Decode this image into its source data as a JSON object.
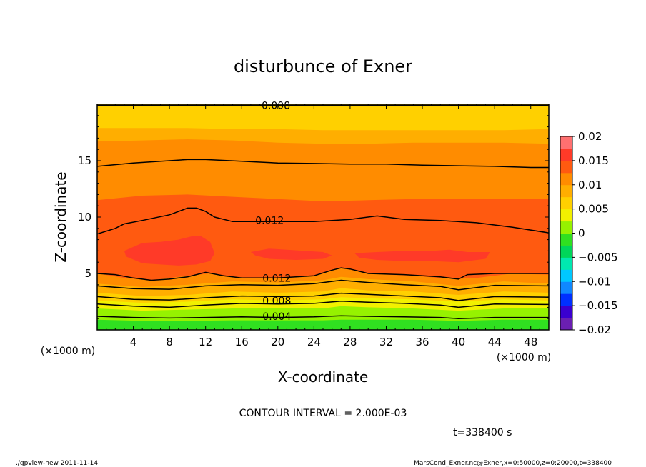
{
  "chart_data": {
    "type": "heatmap",
    "title": "disturbunce of Exner",
    "xlabel": "X-coordinate",
    "ylabel": "Z-coordinate",
    "x_unit": "(×1000 m)",
    "y_unit": "(×1000 m)",
    "xlim": [
      0,
      50
    ],
    "ylim": [
      0,
      20
    ],
    "x_ticks": [
      4,
      8,
      12,
      16,
      20,
      24,
      28,
      32,
      36,
      40,
      44,
      48
    ],
    "y_ticks": [
      5,
      10,
      15
    ],
    "colorbar": {
      "min": -0.02,
      "max": 0.02,
      "step": 0.0025,
      "tick_labels": [
        "0.02",
        "0.015",
        "0.01",
        "0.005",
        "0",
        "−0.005",
        "−0.01",
        "−0.015",
        "−0.02"
      ],
      "colors": [
        "#6a1fb2",
        "#3a00d0",
        "#0030ff",
        "#1088ff",
        "#00c8ff",
        "#00e8b0",
        "#00d65a",
        "#30e020",
        "#96f200",
        "#f2f000",
        "#ffd000",
        "#ffae00",
        "#ff8c00",
        "#ff5a10",
        "#ff3a28",
        "#ff7070"
      ]
    },
    "bands": [
      {
        "x": [
          0,
          5,
          10,
          15,
          20,
          25,
          27,
          30,
          35,
          40,
          45,
          50
        ],
        "y": [
          0,
          0,
          0,
          0,
          0,
          0,
          0,
          0,
          0,
          0,
          0,
          0
        ],
        "color": "#30e020"
      },
      {
        "x": [
          0,
          5,
          10,
          15,
          20,
          25,
          27,
          30,
          35,
          40,
          45,
          50
        ],
        "y": [
          0.9,
          0.8,
          0.8,
          0.85,
          0.85,
          0.85,
          0.9,
          0.9,
          0.9,
          0.8,
          0.9,
          0.9
        ],
        "color": "#96f200"
      },
      {
        "x": [
          0,
          5,
          10,
          15,
          20,
          25,
          27,
          30,
          35,
          40,
          45,
          50
        ],
        "y": [
          1.9,
          1.7,
          1.8,
          1.9,
          1.9,
          1.9,
          2.1,
          2.0,
          1.9,
          1.7,
          1.9,
          1.9
        ],
        "color": "#f2f000"
      },
      {
        "x": [
          0,
          5,
          10,
          15,
          20,
          25,
          27,
          30,
          35,
          40,
          45,
          50
        ],
        "y": [
          2.6,
          2.4,
          2.5,
          2.7,
          2.6,
          2.7,
          2.9,
          2.8,
          2.7,
          2.5,
          2.7,
          2.6
        ],
        "color": "#ffd000"
      },
      {
        "x": [
          0,
          5,
          10,
          15,
          20,
          25,
          27,
          30,
          35,
          40,
          45,
          50
        ],
        "y": [
          3.3,
          3.0,
          3.1,
          3.4,
          3.3,
          3.4,
          3.7,
          3.5,
          3.4,
          3.1,
          3.4,
          3.3
        ],
        "color": "#ffae00"
      },
      {
        "x": [
          0,
          5,
          10,
          15,
          20,
          25,
          27,
          30,
          35,
          40,
          45,
          50
        ],
        "y": [
          4.1,
          3.8,
          4.0,
          4.3,
          4.2,
          4.4,
          4.7,
          4.5,
          4.3,
          3.9,
          4.3,
          4.1
        ],
        "color": "#ff8c00"
      },
      {
        "x": [
          0,
          5,
          10,
          15,
          20,
          25,
          27,
          30,
          35,
          40,
          45,
          50
        ],
        "y": [
          5.0,
          4.5,
          4.8,
          5.2,
          4.9,
          5.1,
          5.5,
          5.0,
          4.9,
          4.5,
          5.0,
          4.9
        ],
        "color": "#ff5a10"
      }
    ],
    "upper_bands": [
      {
        "x": [
          0,
          5,
          10,
          15,
          20,
          25,
          30,
          35,
          40,
          45,
          50
        ],
        "y": [
          11.5,
          11.9,
          12.0,
          11.8,
          11.6,
          11.4,
          11.5,
          11.6,
          11.6,
          11.6,
          11.6
        ],
        "color": "#ff8c00"
      },
      {
        "x": [
          0,
          5,
          10,
          15,
          20,
          25,
          30,
          35,
          40,
          45,
          50
        ],
        "y": [
          16.7,
          16.8,
          16.9,
          16.8,
          16.6,
          16.5,
          16.5,
          16.6,
          16.6,
          16.6,
          16.5
        ],
        "color": "#ffae00"
      },
      {
        "x": [
          0,
          5,
          10,
          15,
          20,
          25,
          30,
          35,
          40,
          45,
          50
        ],
        "y": [
          17.9,
          17.9,
          17.9,
          17.8,
          17.8,
          17.7,
          17.7,
          17.7,
          17.7,
          17.7,
          17.8
        ],
        "color": "#ffd000"
      }
    ],
    "inner_region": {
      "x": [
        0,
        3,
        6,
        8,
        10,
        12,
        14,
        17,
        20,
        24,
        27,
        30,
        32,
        35,
        38,
        42,
        46,
        50,
        50,
        46,
        42,
        38,
        35,
        32,
        30,
        27,
        24,
        20,
        17,
        14,
        12,
        10,
        8,
        6,
        3,
        0
      ],
      "y_top": [
        8.5,
        9.3,
        9.8,
        10.3,
        10.8,
        10.4,
        9.8,
        9.6,
        9.6,
        9.6,
        9.7,
        10.0,
        10.0,
        9.8,
        9.7,
        9.5,
        9.1,
        8.6
      ],
      "y_bottom": [
        5.0,
        4.6,
        4.4,
        4.6,
        4.8,
        5.2,
        4.8,
        4.6,
        4.6,
        4.8,
        5.6,
        5.1,
        4.9,
        4.8,
        4.6,
        4.6,
        5.0,
        5.0
      ],
      "color": "#ff5a10"
    },
    "core_regions": [
      {
        "x": [
          3.0,
          5,
          7,
          9,
          10.5,
          11.5,
          12.5,
          13,
          12.5,
          11,
          9,
          7,
          5,
          3.2
        ],
        "y": [
          7.0,
          7.7,
          7.8,
          8.0,
          8.3,
          8.3,
          7.8,
          6.8,
          6.1,
          5.8,
          5.7,
          5.8,
          5.9,
          6.5
        ],
        "color": "#ff3a28"
      },
      {
        "x": [
          17,
          19,
          21,
          23,
          25,
          26,
          25,
          22,
          19,
          17.5
        ],
        "y": [
          6.9,
          7.2,
          7.1,
          7.0,
          6.9,
          6.6,
          6.3,
          6.2,
          6.3,
          6.6
        ],
        "color": "#ff3a28"
      },
      {
        "x": [
          28.5,
          31,
          34,
          37,
          39,
          41,
          43.5,
          43,
          40,
          37,
          34,
          31,
          29
        ],
        "y": [
          6.8,
          6.9,
          7.0,
          7.0,
          7.1,
          6.9,
          6.9,
          6.3,
          6.0,
          6.1,
          6.1,
          6.2,
          6.4
        ],
        "color": "#ff3a28"
      }
    ],
    "contours": [
      {
        "value": "0.004",
        "label": "0.004",
        "x": [
          0,
          4,
          8,
          12,
          16,
          20,
          24,
          27,
          30,
          34,
          38,
          40,
          44,
          50
        ],
        "y": [
          1.2,
          1.1,
          1.05,
          1.1,
          1.15,
          1.1,
          1.15,
          1.25,
          1.2,
          1.15,
          1.1,
          1.0,
          1.1,
          1.1
        ],
        "label_x": 18.3,
        "label_y": 1.2
      },
      {
        "value": "0.006",
        "label": "",
        "x": [
          0,
          4,
          8,
          12,
          16,
          20,
          24,
          27,
          30,
          34,
          38,
          40,
          44,
          50
        ],
        "y": [
          2.3,
          2.1,
          2.0,
          2.2,
          2.35,
          2.3,
          2.35,
          2.55,
          2.45,
          2.35,
          2.2,
          2.0,
          2.3,
          2.25
        ],
        "label_x": 0,
        "label_y": 0
      },
      {
        "value": "0.008",
        "label": "0.008",
        "x": [
          0,
          4,
          8,
          12,
          16,
          20,
          24,
          27,
          30,
          34,
          38,
          40,
          44,
          50
        ],
        "y": [
          2.95,
          2.7,
          2.65,
          2.85,
          3.0,
          2.95,
          3.0,
          3.25,
          3.15,
          3.0,
          2.85,
          2.6,
          2.95,
          2.9
        ],
        "label_x": 18.3,
        "label_y": 2.6
      },
      {
        "value": "0.010",
        "label": "",
        "x": [
          0,
          4,
          8,
          12,
          16,
          20,
          24,
          27,
          30,
          34,
          38,
          40,
          44,
          50
        ],
        "y": [
          3.9,
          3.65,
          3.6,
          3.9,
          4.0,
          3.95,
          4.1,
          4.4,
          4.2,
          4.0,
          3.85,
          3.55,
          3.95,
          3.9
        ],
        "label_x": 0,
        "label_y": 0
      },
      {
        "value": "0.012",
        "label": "0.012",
        "x": [
          0,
          2,
          4,
          6,
          8,
          10,
          12,
          14,
          16,
          20,
          24,
          26,
          27,
          28,
          30,
          34,
          38,
          40,
          41,
          44,
          48,
          50
        ],
        "y": [
          5.0,
          4.9,
          4.6,
          4.4,
          4.5,
          4.7,
          5.1,
          4.8,
          4.6,
          4.6,
          4.8,
          5.3,
          5.5,
          5.4,
          5.0,
          4.9,
          4.7,
          4.5,
          4.9,
          5.0,
          5.0,
          5.0
        ],
        "label_x": 18.3,
        "label_y": 4.6
      },
      {
        "value": "0.012",
        "label": "0.012",
        "x": [
          0,
          2,
          3,
          5,
          8,
          10,
          11,
          12,
          13,
          15,
          18,
          20,
          24,
          28,
          31,
          32,
          34,
          38,
          42,
          46,
          50
        ],
        "y": [
          8.5,
          9.0,
          9.4,
          9.7,
          10.2,
          10.8,
          10.8,
          10.5,
          10.0,
          9.6,
          9.6,
          9.6,
          9.6,
          9.8,
          10.1,
          10.0,
          9.8,
          9.7,
          9.5,
          9.1,
          8.6
        ],
        "label_x": 17.5,
        "label_y": 9.7
      },
      {
        "value": "0.010",
        "label": "",
        "x": [
          0,
          4,
          8,
          10,
          12,
          16,
          20,
          24,
          28,
          32,
          36,
          40,
          44,
          48,
          50
        ],
        "y": [
          14.5,
          14.8,
          15.0,
          15.1,
          15.1,
          14.95,
          14.8,
          14.75,
          14.7,
          14.7,
          14.6,
          14.55,
          14.5,
          14.4,
          14.4
        ],
        "label_x": 0,
        "label_y": 0
      },
      {
        "value": "0.008",
        "label": "0.008",
        "x": [
          0,
          50
        ],
        "y": [
          19.9,
          19.9
        ],
        "label_x": 18.2,
        "label_y": 19.9
      }
    ]
  },
  "annotations": {
    "contour_interval": "CONTOUR INTERVAL = 2.000E-03",
    "time": "t=338400 s",
    "footer_left": "./gpview-new   2011-11-14",
    "footer_right": "MarsCond_Exner.nc@Exner,x=0:50000,z=0:20000,t=338400"
  }
}
